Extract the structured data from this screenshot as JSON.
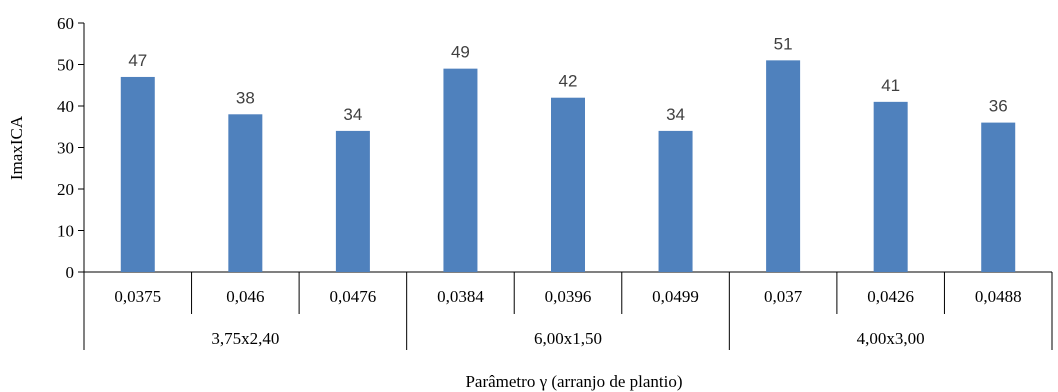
{
  "chart_data": {
    "type": "bar",
    "title": "",
    "ylabel": "ImaxICA",
    "xlabel": "Parâmetro γ (arranjo de plantio)",
    "ylim": [
      0,
      60
    ],
    "yticks": [
      0,
      10,
      20,
      30,
      40,
      50,
      60
    ],
    "grid": false,
    "bar_color": "#4f81bd",
    "categories": [
      "0,0375",
      "0,046",
      "0,0476",
      "0,0384",
      "0,0396",
      "0,0499",
      "0,037",
      "0,0426",
      "0,0488"
    ],
    "groups": [
      {
        "label": "3,75x2,40",
        "count": 3
      },
      {
        "label": "6,00x1,50",
        "count": 3
      },
      {
        "label": "4,00x3,00",
        "count": 3
      }
    ],
    "values": [
      47,
      38,
      34,
      49,
      42,
      34,
      51,
      41,
      36
    ]
  }
}
